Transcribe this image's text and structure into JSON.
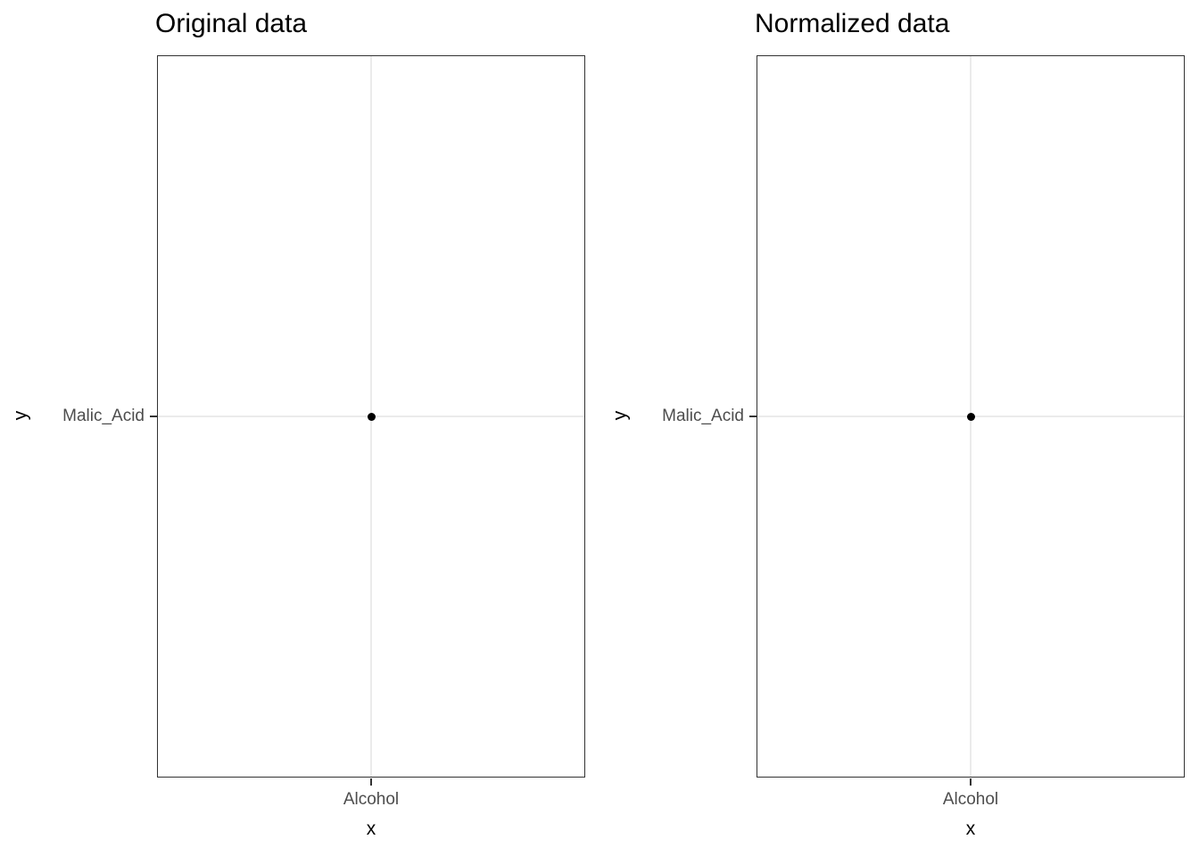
{
  "figure": {
    "background": "#FFFFFF",
    "n_panels": 2
  },
  "style": {
    "point_color": "#000000",
    "gridline_color": "#EBEBEB",
    "panel_border_color": "#333333",
    "tick_mark_color": "#333333",
    "tick_label_color": "#4D4D4D",
    "title_color": "#000000",
    "axis_title_color": "#000000"
  },
  "chart_data": [
    {
      "type": "scatter",
      "title": "Original data",
      "xlabel": "x",
      "ylabel": "y",
      "x_categories": [
        "Alcohol"
      ],
      "y_categories": [
        "Malic_Acid"
      ],
      "points": [
        {
          "x": "Alcohol",
          "y": "Malic_Acid"
        }
      ],
      "point_color": "#000000",
      "grid": "major gridlines at each category, color #EBEBEB",
      "legend": "none",
      "panel_background": "#FFFFFF"
    },
    {
      "type": "scatter",
      "title": "Normalized data",
      "xlabel": "x",
      "ylabel": "y",
      "x_categories": [
        "Alcohol"
      ],
      "y_categories": [
        "Malic_Acid"
      ],
      "points": [
        {
          "x": "Alcohol",
          "y": "Malic_Acid"
        }
      ],
      "point_color": "#000000",
      "grid": "major gridlines at each category, color #EBEBEB",
      "legend": "none",
      "panel_background": "#FFFFFF"
    }
  ]
}
